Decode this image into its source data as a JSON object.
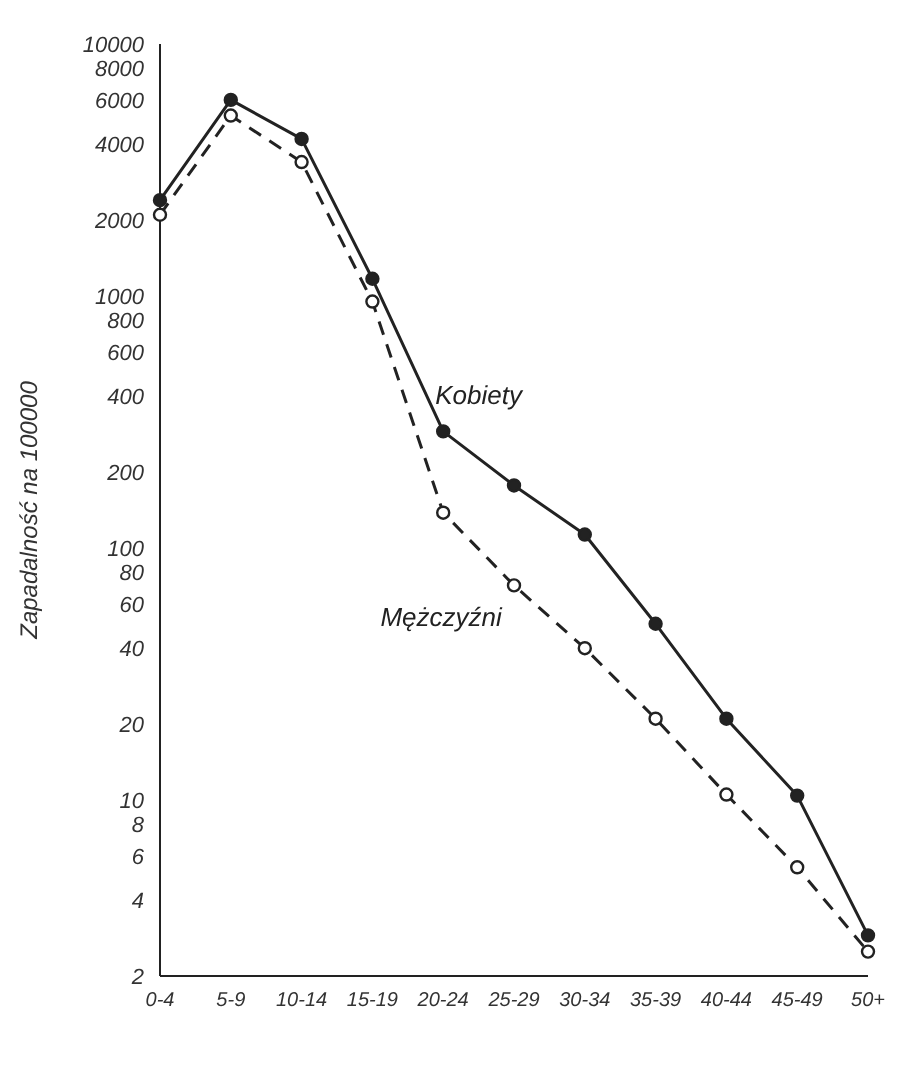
{
  "chart_data": {
    "type": "line",
    "ylabel": "Zapadalność na 100000",
    "categories": [
      "0-4",
      "5-9",
      "10-14",
      "15-19",
      "20-24",
      "25-29",
      "30-34",
      "35-39",
      "40-44",
      "45-49",
      "50+"
    ],
    "log": "y",
    "ylim": [
      2,
      10000
    ],
    "yticks": [
      2,
      4,
      6,
      8,
      10,
      20,
      40,
      60,
      80,
      100,
      200,
      400,
      600,
      800,
      1000,
      2000,
      4000,
      6000,
      8000,
      10000
    ],
    "grid": false,
    "legend": false,
    "series": [
      {
        "name": "Kobiety",
        "color": "#222222",
        "line_style": "solid",
        "marker": "circle",
        "values": [
          2400,
          6000,
          4200,
          1170,
          290,
          177,
          113,
          50,
          21,
          10.4,
          2.9
        ]
      },
      {
        "name": "Mężczyźni",
        "color": "#222222",
        "line_style": "dashed",
        "marker": "circle",
        "values": [
          2100,
          5200,
          3400,
          950,
          138,
          71,
          40,
          21,
          10.5,
          5.4,
          2.5
        ]
      }
    ]
  }
}
